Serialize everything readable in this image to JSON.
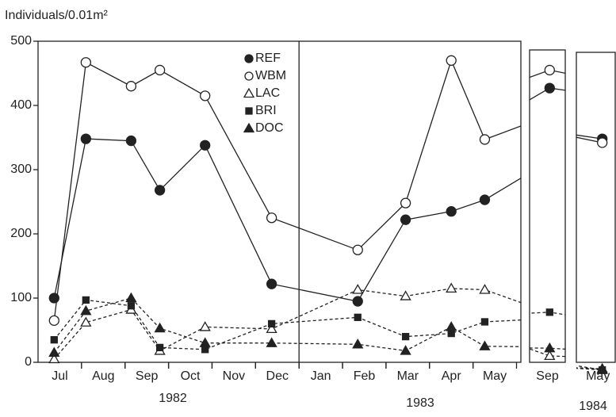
{
  "chart_data": {
    "type": "line",
    "y_label": "Individuals/0.01m²",
    "years": [
      "1982",
      "1983",
      "1984"
    ],
    "x": [
      0.37,
      1.1,
      2.14,
      2.8,
      3.84,
      5.37,
      7.35,
      8.45,
      9.5,
      10.27,
      14.55,
      22.6
    ],
    "xlim": [
      [
        0,
        11.1
      ],
      [
        14.1,
        14.9
      ],
      [
        22.0,
        22.9
      ]
    ],
    "xticks": [
      {
        "value": 0.5,
        "label": "Jul"
      },
      {
        "value": 1.5,
        "label": "Aug"
      },
      {
        "value": 2.5,
        "label": "Sep"
      },
      {
        "value": 3.5,
        "label": "Oct"
      },
      {
        "value": 4.5,
        "label": "Nov"
      },
      {
        "value": 5.5,
        "label": "Dec"
      },
      {
        "value": 6.5,
        "label": "Jan"
      },
      {
        "value": 7.5,
        "label": "Feb"
      },
      {
        "value": 8.5,
        "label": "Mar"
      },
      {
        "value": 9.5,
        "label": "Apr"
      },
      {
        "value": 10.5,
        "label": "May"
      },
      {
        "value": 14.5,
        "label": "Sep"
      },
      {
        "value": 22.5,
        "label": "May"
      }
    ],
    "ylim": [
      0,
      500
    ],
    "yticks": [
      0,
      100,
      200,
      300,
      400,
      500
    ],
    "series": [
      {
        "name": "REF",
        "color": "#222",
        "marker": "circle-filled",
        "line_style": "solid",
        "values": [
          100,
          348,
          345,
          268,
          338,
          122,
          95,
          222,
          235,
          253,
          427,
          348
        ]
      },
      {
        "name": "WBM",
        "color": "#222",
        "marker": "circle-open",
        "line_style": "solid",
        "values": [
          65,
          467,
          430,
          455,
          415,
          225,
          175,
          248,
          470,
          347,
          455,
          342
        ]
      },
      {
        "name": "LAC",
        "color": "#222",
        "marker": "triangle-open",
        "line_style": "dashed",
        "values": [
          5,
          62,
          82,
          18,
          55,
          52,
          113,
          103,
          115,
          113,
          10,
          -10
        ]
      },
      {
        "name": "BRI",
        "color": "#222",
        "marker": "square-filled",
        "line_style": "dashed",
        "values": [
          35,
          97,
          88,
          23,
          20,
          60,
          70,
          40,
          45,
          63,
          78,
          -12
        ]
      },
      {
        "name": "DOC",
        "color": "#222",
        "marker": "triangle-filled",
        "line_style": "dashed",
        "values": [
          15,
          80,
          100,
          53,
          30,
          30,
          28,
          18,
          55,
          25,
          22,
          -12
        ]
      }
    ]
  }
}
